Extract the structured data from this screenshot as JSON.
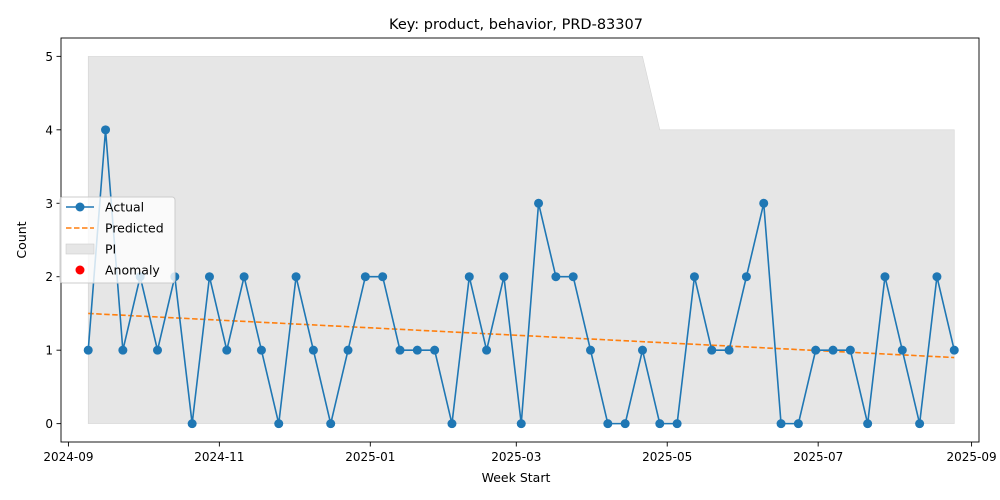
{
  "chart_data": {
    "type": "line",
    "title": "Key: product, behavior, PRD-83307",
    "xlabel": "Week Start",
    "ylabel": "Count",
    "x_ticks": [
      "2024-09",
      "2024-11",
      "2025-01",
      "2025-03",
      "2025-05",
      "2025-07",
      "2025-09"
    ],
    "y_ticks": [
      "0",
      "1",
      "2",
      "3",
      "4",
      "5"
    ],
    "xlim": [
      "2024-08-29",
      "2025-09-04"
    ],
    "ylim": [
      -0.25,
      5.25
    ],
    "grid": false,
    "legend": {
      "placement": "center-left",
      "entries": [
        "Actual",
        "Predicted",
        "PI",
        "Anomaly"
      ]
    },
    "colors": {
      "actual": "#1f77b4",
      "predicted": "#ff7f0e",
      "pi": "#e6e6e6",
      "anomaly": "#ff0000"
    },
    "x": [
      "2024-09-09",
      "2024-09-16",
      "2024-09-23",
      "2024-09-30",
      "2024-10-07",
      "2024-10-14",
      "2024-10-21",
      "2024-10-28",
      "2024-11-04",
      "2024-11-11",
      "2024-11-18",
      "2024-11-25",
      "2024-12-02",
      "2024-12-09",
      "2024-12-16",
      "2024-12-23",
      "2024-12-30",
      "2025-01-06",
      "2025-01-13",
      "2025-01-20",
      "2025-01-27",
      "2025-02-03",
      "2025-02-10",
      "2025-02-17",
      "2025-02-24",
      "2025-03-03",
      "2025-03-10",
      "2025-03-17",
      "2025-03-24",
      "2025-03-31",
      "2025-04-07",
      "2025-04-14",
      "2025-04-21",
      "2025-04-28",
      "2025-05-05",
      "2025-05-12",
      "2025-05-19",
      "2025-05-26",
      "2025-06-02",
      "2025-06-09",
      "2025-06-16",
      "2025-06-23",
      "2025-06-30",
      "2025-07-07",
      "2025-07-14",
      "2025-07-21",
      "2025-07-28",
      "2025-08-04",
      "2025-08-11",
      "2025-08-18",
      "2025-08-25"
    ],
    "series": [
      {
        "name": "Actual",
        "values": [
          1,
          4,
          1,
          2,
          1,
          2,
          0,
          2,
          1,
          2,
          1,
          0,
          2,
          1,
          0,
          1,
          2,
          2,
          1,
          1,
          1,
          0,
          2,
          1,
          2,
          0,
          3,
          2,
          2,
          1,
          0,
          0,
          1,
          0,
          0,
          2,
          1,
          1,
          2,
          3,
          0,
          0,
          1,
          1,
          1,
          0,
          2,
          1,
          0,
          2,
          1
        ]
      },
      {
        "name": "Predicted",
        "start": 1.5,
        "end": 0.9
      }
    ],
    "pi": {
      "lower": 0,
      "upper_steps": [
        {
          "from": "2024-09-09",
          "to": "2025-04-21",
          "value": 5
        },
        {
          "from": "2025-04-28",
          "to": "2025-08-25",
          "value": 4
        }
      ]
    },
    "anomalies": []
  }
}
